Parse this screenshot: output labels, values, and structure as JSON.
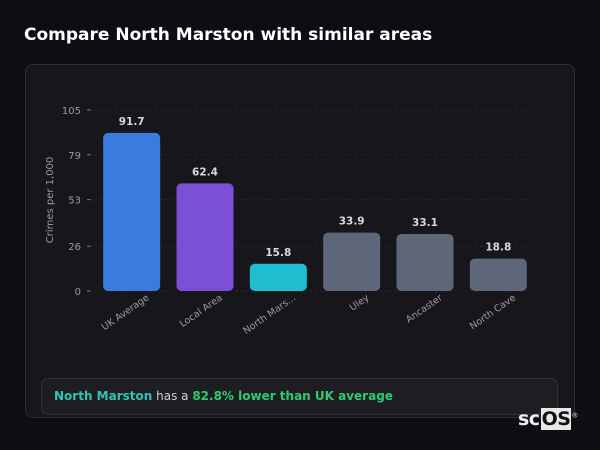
{
  "title": "Compare North Marston with similar areas",
  "chart_data": {
    "type": "bar",
    "ylabel": "Crimes per 1,000",
    "ylim": [
      0,
      105
    ],
    "yticks": [
      0,
      26,
      53,
      79,
      105
    ],
    "grid": true,
    "categories": [
      "UK Average",
      "Local Area",
      "North Mars...",
      "Uley",
      "Ancaster",
      "North Cave"
    ],
    "values": [
      91.7,
      62.4,
      15.8,
      33.9,
      33.1,
      18.8
    ],
    "value_labels": [
      "91.7",
      "62.4",
      "15.8",
      "33.9",
      "33.1",
      "18.8"
    ],
    "colors": [
      "#3a7be0",
      "#7b4fd6",
      "#20bcd0",
      "#5d6779",
      "#5d6779",
      "#5d6779"
    ]
  },
  "summary": {
    "place": "North Marston",
    "middle": " has a ",
    "highlight": "82.8% lower than UK average"
  },
  "logo": {
    "text1": "sc",
    "text2": "OS",
    "mark": "®"
  }
}
